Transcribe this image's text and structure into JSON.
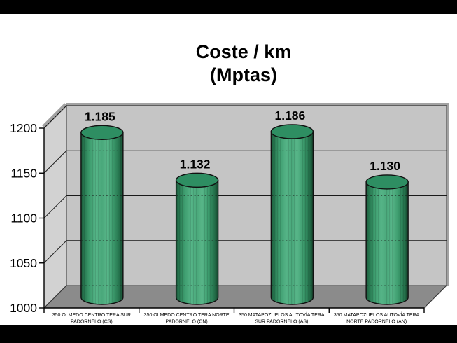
{
  "canvas": {
    "letterbox_color": "#000000",
    "slide_background": "#ffffff"
  },
  "title": {
    "line1": "Coste / km",
    "line2": "(Mptas)"
  },
  "chart_data": {
    "type": "bar",
    "render_style": "3d-cylinder",
    "title": "Coste / km (Mptas)",
    "categories": [
      [
        "350 OLMEDO CENTRO TERA SUR",
        "PADORNELO (CS)"
      ],
      [
        "350 OLMEDO CENTRO TERA NORTE",
        "PADORNELO (CN)"
      ],
      [
        "350 MATAPOZUELOS AUTOVÍA TERA",
        "SUR PADORNELO (AS)"
      ],
      [
        "350 MATAPOZUELOS AUTOVÍA TERA",
        "NORTE PADORNELO (AN)"
      ]
    ],
    "values": [
      1185,
      1132,
      1186,
      1130
    ],
    "value_labels": [
      "1.185",
      "1.132",
      "1.186",
      "1.130"
    ],
    "xlabel": "",
    "ylabel": "",
    "ylim": [
      1000,
      1200
    ],
    "yticks": [
      1000,
      1050,
      1100,
      1150,
      1200
    ],
    "ytick_labels": [
      "1000",
      "1050",
      "1100",
      "1150",
      "1200"
    ],
    "grid": true,
    "legend": "none",
    "colors": {
      "cylinder_top": "#2e8e62",
      "cylinder_body_light": "#55b487",
      "cylinder_body_dark": "#1c5a3c",
      "back_wall": "#c5c5c5",
      "side_wall": "#d2d2d2",
      "wall_edge": "#a2a2a2",
      "floor": "#8b8b8b",
      "gridline": "#1a1a1a",
      "outline": "#333333",
      "text": "#000000"
    }
  }
}
